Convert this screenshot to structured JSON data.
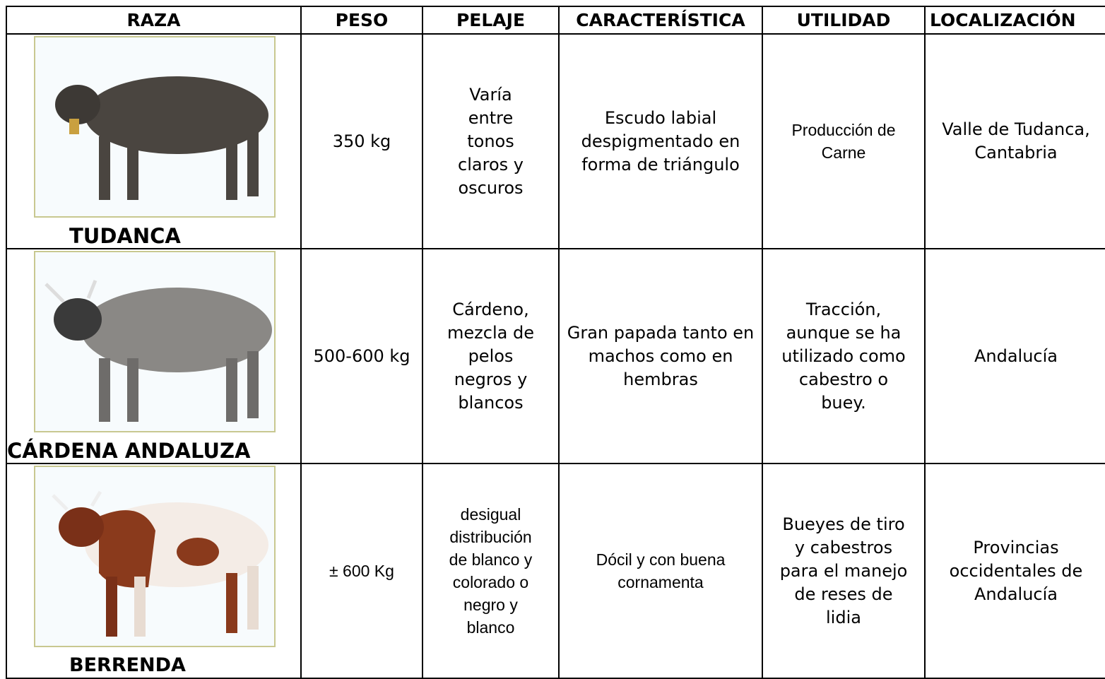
{
  "table": {
    "header": [
      "RAZA",
      "PESO",
      "PELAJE",
      "CARACTERÍSTICA",
      "UTILIDAD",
      "LOCALIZACIÓN"
    ],
    "rows": [
      [
        "TUDANCA",
        "350 kg",
        "Varía entre tonos claros y oscuros",
        "Escudo labial despigmentado en forma de triángulo",
        "Producción de Carne",
        "Valle de Tudanca, Cantabria"
      ],
      [
        "CÁRDENA ANDALUZA",
        "500-600 kg",
        "Cárdeno, mezcla de pelos negros y blancos",
        "Gran papada tanto en machos como en hembras",
        "Tracción, aunque se ha utilizado como cabestro o buey.",
        "Andalucía"
      ],
      [
        "BERRENDA",
        "± 600 Kg",
        "desigual distribución de blanco y colorado o negro y blanco",
        "Dócil y con buena cornamenta",
        "Bueyes de tiro y cabestros para el manejo de reses de lidia",
        "Provincias occidentales de Andalucía"
      ]
    ]
  }
}
